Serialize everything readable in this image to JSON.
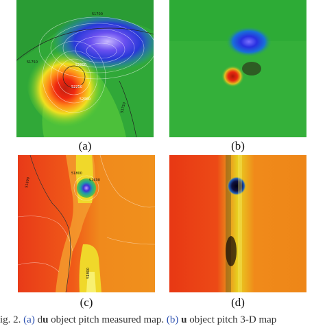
{
  "figure": {
    "panels": [
      {
        "label": "(a)",
        "contours": [
          "51700",
          "51750",
          "51780",
          "52000",
          "52250",
          "52000",
          "51750"
        ]
      },
      {
        "label": "(b)"
      },
      {
        "label": "(c)",
        "contours": [
          "51600",
          "51800",
          "51600",
          "51800"
        ]
      },
      {
        "label": "(d)"
      }
    ],
    "caption": {
      "prefix": "ig. 2.",
      "ref_a": "(a)",
      "text_a": "d",
      "bold_a": "u",
      "text_a2": " object pitch measured map.",
      "ref_b": "(b)",
      "bold_b": "u",
      "text_b": " object pitch 3-D map"
    }
  },
  "colors": {
    "green": "#2fb033",
    "blue": "#3040d8",
    "red": "#e02010",
    "orange": "#f07018",
    "yellow": "#f0e020"
  }
}
